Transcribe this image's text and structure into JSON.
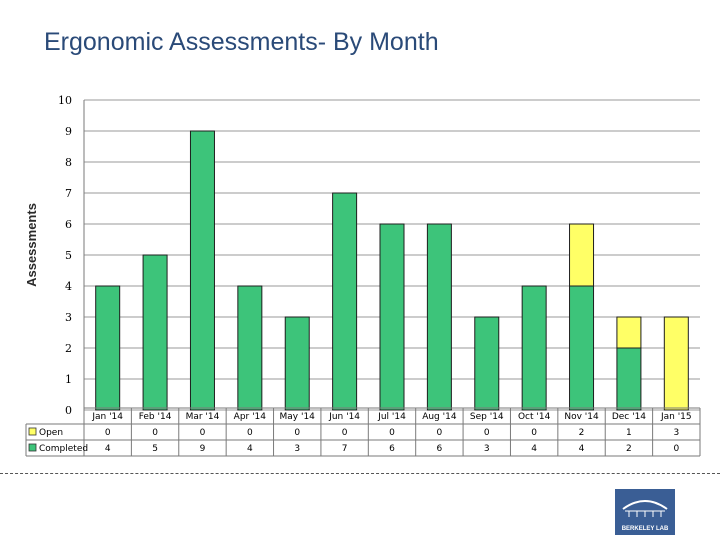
{
  "page": {
    "title": "Ergonomic Assessments- By Month",
    "logo_label": "BERKELEY LAB"
  },
  "colors": {
    "completed": "#3dc47a",
    "open": "#ffff66",
    "title": "#2a4a78",
    "logo": "#3a5e95"
  },
  "chart_data": {
    "type": "bar",
    "stacked": true,
    "title": "Ergonomic Assessments- By Month",
    "ylabel": "Assessments",
    "xlabel": "",
    "ylim": [
      0,
      10
    ],
    "yticks": [
      0,
      1,
      2,
      3,
      4,
      5,
      6,
      7,
      8,
      9,
      10
    ],
    "grid": true,
    "categories": [
      "Jan '14",
      "Feb '14",
      "Mar '14",
      "Apr '14",
      "May '14",
      "Jun '14",
      "Jul '14",
      "Aug '14",
      "Sep '14",
      "Oct '14",
      "Nov '14",
      "Dec '14",
      "Jan '15"
    ],
    "series": [
      {
        "name": "Completed",
        "values": [
          4,
          5,
          9,
          4,
          3,
          7,
          6,
          6,
          3,
          4,
          4,
          2,
          0
        ]
      },
      {
        "name": "Open",
        "values": [
          0,
          0,
          0,
          0,
          0,
          0,
          0,
          0,
          0,
          0,
          2,
          1,
          3
        ]
      }
    ],
    "data_table": {
      "rows": [
        {
          "label": "Open",
          "values": [
            "0",
            "0",
            "0",
            "0",
            "0",
            "0",
            "0",
            "0",
            "0",
            "0",
            "2",
            "1",
            "3"
          ]
        },
        {
          "label": "Completed",
          "values": [
            "4",
            "5",
            "9",
            "4",
            "3",
            "7",
            "6",
            "6",
            "3",
            "4",
            "4",
            "2",
            "0"
          ]
        }
      ]
    }
  }
}
